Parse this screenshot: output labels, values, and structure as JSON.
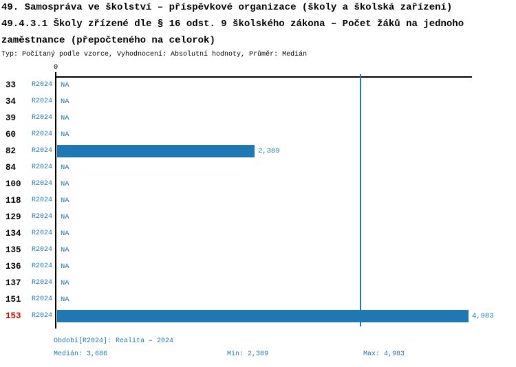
{
  "header": {
    "title_line1": "49. Samospráva ve školství – příspěvkové organizace (školy a školská zařízení)",
    "title_line2": "49.4.3.1 Školy zřízené dle § 16 odst. 9 školského zákona – Počet žáků na jednoho",
    "title_line3": "zaměstnance (přepočteného na celorok)",
    "subtitle": "Typ: Počítaný podle vzorce, Vyhodnocení: Absolutní hodnoty, Průměr: Medián"
  },
  "colors": {
    "accent_blue": "#1f77b4",
    "highlight_red": "#dd0000",
    "axis_black": "#000000",
    "background": "#ffffff"
  },
  "chart_data": {
    "type": "bar",
    "orientation": "horizontal",
    "title": "49.4.3.1 Školy zřízené dle § 16 odst. 9 školského zákona – Počet žáků na jednoho zaměstnance (přepočteného na celorok)",
    "xlabel": "",
    "ylabel": "",
    "xlim": [
      0,
      4983
    ],
    "axis_zero_label": "0",
    "na_label": "NA",
    "series_label": "R2024",
    "scale_max": 4983,
    "median_value": 3686,
    "grid": false,
    "legend_position": "none",
    "categories": [
      "33",
      "34",
      "39",
      "60",
      "82",
      "84",
      "100",
      "118",
      "129",
      "134",
      "135",
      "136",
      "137",
      "151",
      "153"
    ],
    "rows": [
      {
        "category": "33",
        "period": "R2024",
        "value": null,
        "value_label": "NA",
        "highlight": false
      },
      {
        "category": "34",
        "period": "R2024",
        "value": null,
        "value_label": "NA",
        "highlight": false
      },
      {
        "category": "39",
        "period": "R2024",
        "value": null,
        "value_label": "NA",
        "highlight": false
      },
      {
        "category": "60",
        "period": "R2024",
        "value": null,
        "value_label": "NA",
        "highlight": false
      },
      {
        "category": "82",
        "period": "R2024",
        "value": 2389,
        "value_label": "2,389",
        "highlight": false
      },
      {
        "category": "84",
        "period": "R2024",
        "value": null,
        "value_label": "NA",
        "highlight": false
      },
      {
        "category": "100",
        "period": "R2024",
        "value": null,
        "value_label": "NA",
        "highlight": false
      },
      {
        "category": "118",
        "period": "R2024",
        "value": null,
        "value_label": "NA",
        "highlight": false
      },
      {
        "category": "129",
        "period": "R2024",
        "value": null,
        "value_label": "NA",
        "highlight": false
      },
      {
        "category": "134",
        "period": "R2024",
        "value": null,
        "value_label": "NA",
        "highlight": false
      },
      {
        "category": "135",
        "period": "R2024",
        "value": null,
        "value_label": "NA",
        "highlight": false
      },
      {
        "category": "136",
        "period": "R2024",
        "value": null,
        "value_label": "NA",
        "highlight": false
      },
      {
        "category": "137",
        "period": "R2024",
        "value": null,
        "value_label": "NA",
        "highlight": false
      },
      {
        "category": "151",
        "period": "R2024",
        "value": null,
        "value_label": "NA",
        "highlight": false
      },
      {
        "category": "153",
        "period": "R2024",
        "value": 4983,
        "value_label": "4,983",
        "highlight": true
      }
    ]
  },
  "footer": {
    "period_label": "Období[R2024]: Realita – 2024",
    "median_label": "Medián: 3,686",
    "min_label": "Min: 2,389",
    "max_label": "Max: 4,983"
  }
}
